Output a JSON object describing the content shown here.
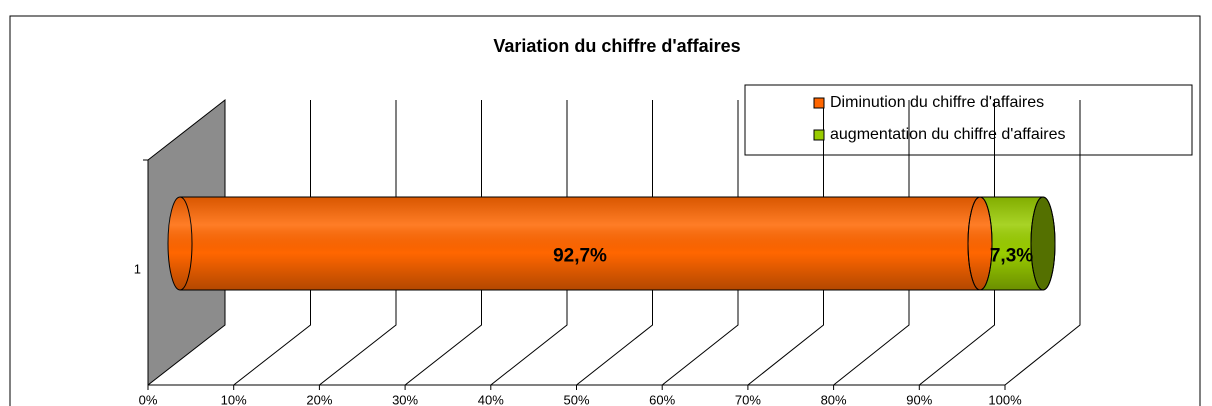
{
  "chart_data": {
    "type": "bar",
    "orientation": "horizontal",
    "stacked": true,
    "title": "Variation du chiffre d'affaires",
    "categories": [
      "1"
    ],
    "series": [
      {
        "name": "Diminution du chiffre d'affaires",
        "color": "#ff6600",
        "values": [
          92.7
        ],
        "value_labels": [
          "92,7%"
        ]
      },
      {
        "name": "augmentation du chiffre d'affaires",
        "color": "#99cc00",
        "values": [
          7.3
        ],
        "value_labels": [
          "7,3%"
        ]
      }
    ],
    "xlim": [
      0,
      100
    ],
    "xticks": [
      {
        "value": 0,
        "label": "0%"
      },
      {
        "value": 10,
        "label": "10%"
      },
      {
        "value": 20,
        "label": "20%"
      },
      {
        "value": 30,
        "label": "30%"
      },
      {
        "value": 40,
        "label": "40%"
      },
      {
        "value": 50,
        "label": "50%"
      },
      {
        "value": 60,
        "label": "60%"
      },
      {
        "value": 70,
        "label": "70%"
      },
      {
        "value": 80,
        "label": "80%"
      },
      {
        "value": 90,
        "label": "90%"
      },
      {
        "value": 100,
        "label": "100%"
      }
    ],
    "grid": true,
    "legend": "top-right"
  }
}
